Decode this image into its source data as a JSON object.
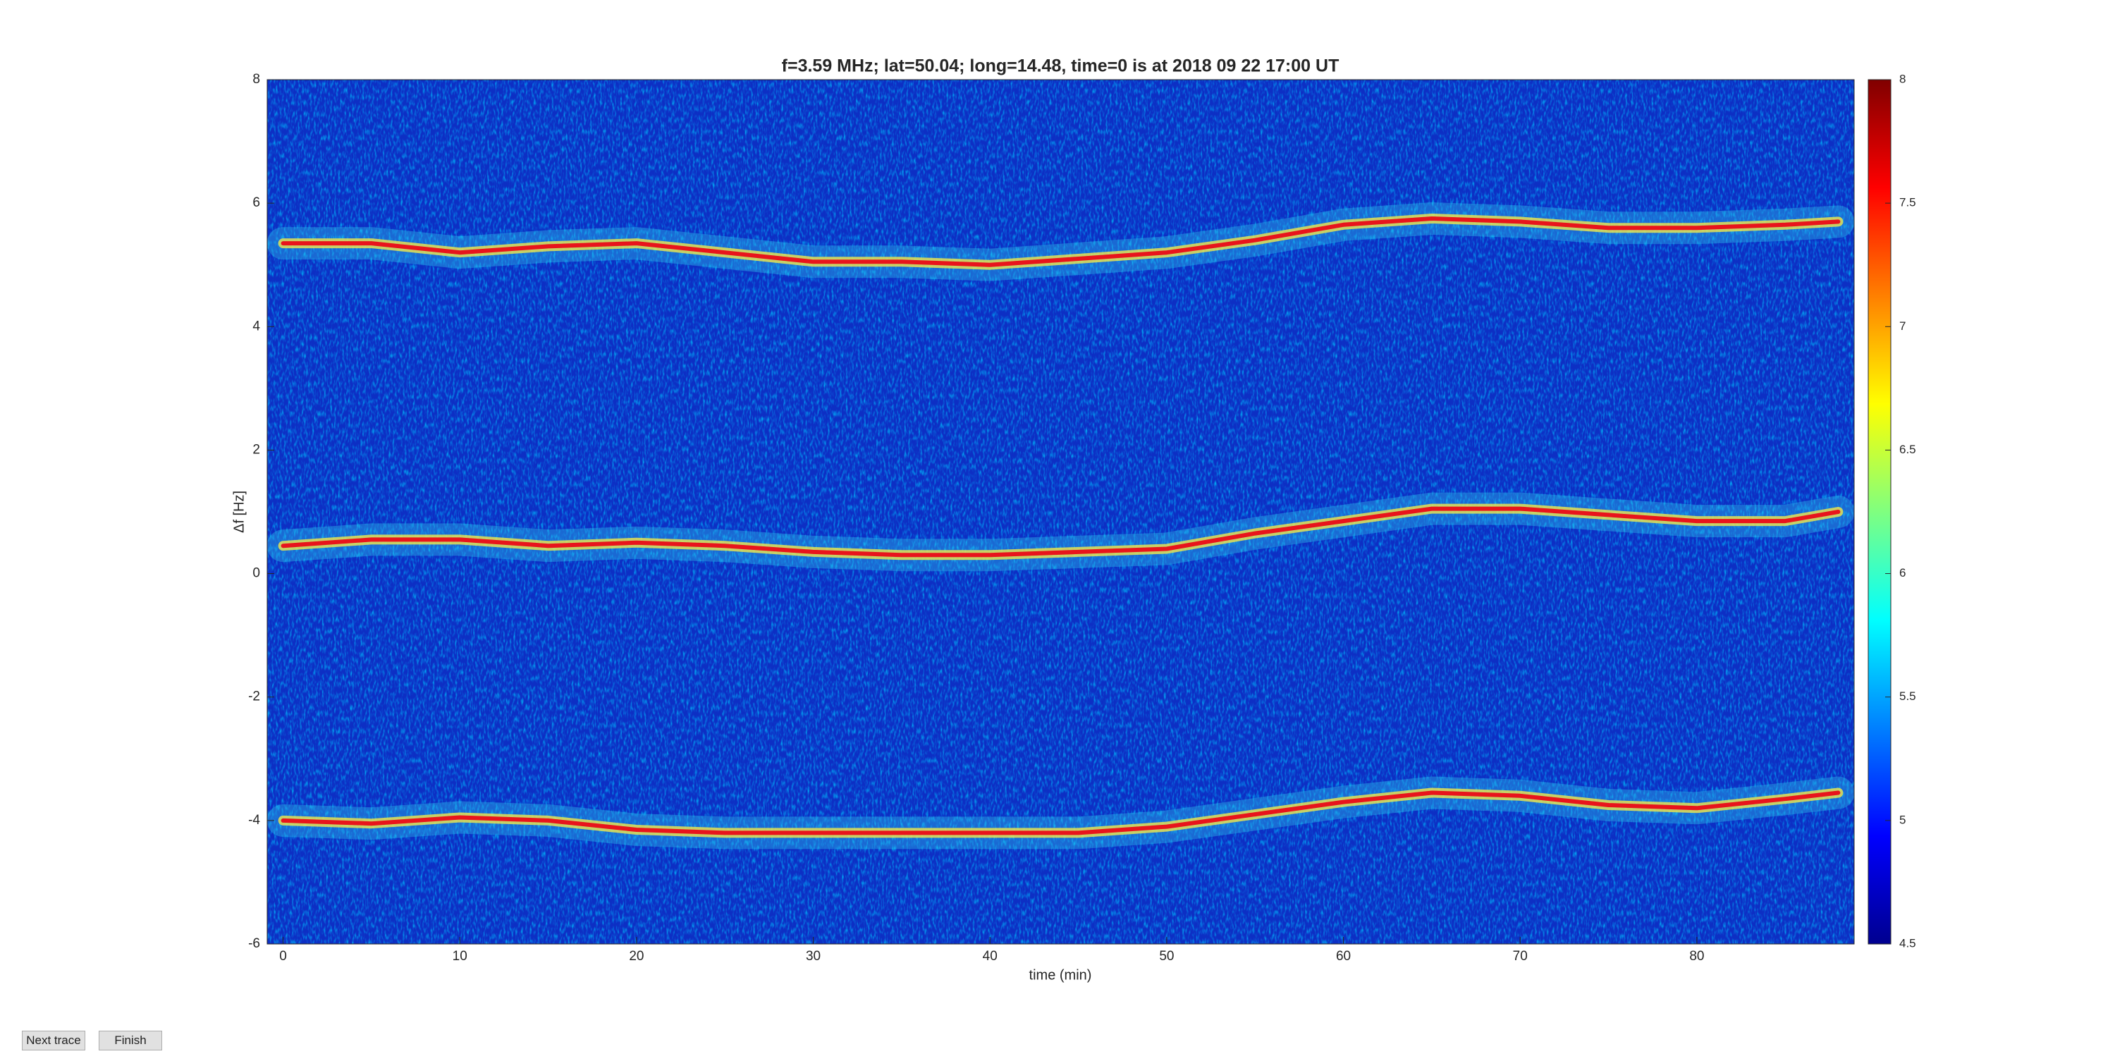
{
  "chart_data": {
    "type": "line",
    "title": "f=3.59 MHz;  lat=50.04; long=14.48, time=0 is at 2018 09 22 17:00 UT",
    "x_label": "time (min)",
    "y_label": "Δf [Hz]",
    "x": [
      0,
      5,
      10,
      15,
      20,
      25,
      30,
      35,
      40,
      45,
      50,
      55,
      60,
      65,
      70,
      75,
      80,
      85,
      88
    ],
    "series": [
      {
        "color": "#e8141c",
        "values": [
          5.35,
          5.35,
          5.2,
          5.3,
          5.35,
          5.2,
          5.05,
          5.05,
          5.0,
          5.1,
          5.2,
          5.4,
          5.65,
          5.75,
          5.7,
          5.6,
          5.6,
          5.65,
          5.7
        ]
      },
      {
        "color": "#e8141c",
        "values": [
          0.45,
          0.55,
          0.55,
          0.45,
          0.5,
          0.45,
          0.35,
          0.3,
          0.3,
          0.35,
          0.4,
          0.65,
          0.85,
          1.05,
          1.05,
          0.95,
          0.85,
          0.85,
          1.0
        ]
      },
      {
        "color": "#e8141c",
        "values": [
          -4.0,
          -4.05,
          -3.95,
          -4.0,
          -4.15,
          -4.2,
          -4.2,
          -4.2,
          -4.2,
          -4.2,
          -4.1,
          -3.9,
          -3.7,
          -3.55,
          -3.6,
          -3.75,
          -3.8,
          -3.65,
          -3.55
        ]
      }
    ],
    "xlim": [
      -0.9,
      88.9
    ],
    "xticks": [
      0,
      10,
      20,
      30,
      40,
      50,
      60,
      70,
      80
    ],
    "ylim": [
      -6,
      8
    ],
    "yticks": [
      -6,
      -4,
      -2,
      0,
      2,
      4,
      6,
      8
    ],
    "colorbar": {
      "clim": [
        4.5,
        8
      ],
      "ticks": [
        4.5,
        5,
        5.5,
        6,
        6.5,
        7,
        7.5,
        8
      ]
    },
    "buttons": [
      "Next trace",
      "Finish"
    ]
  }
}
